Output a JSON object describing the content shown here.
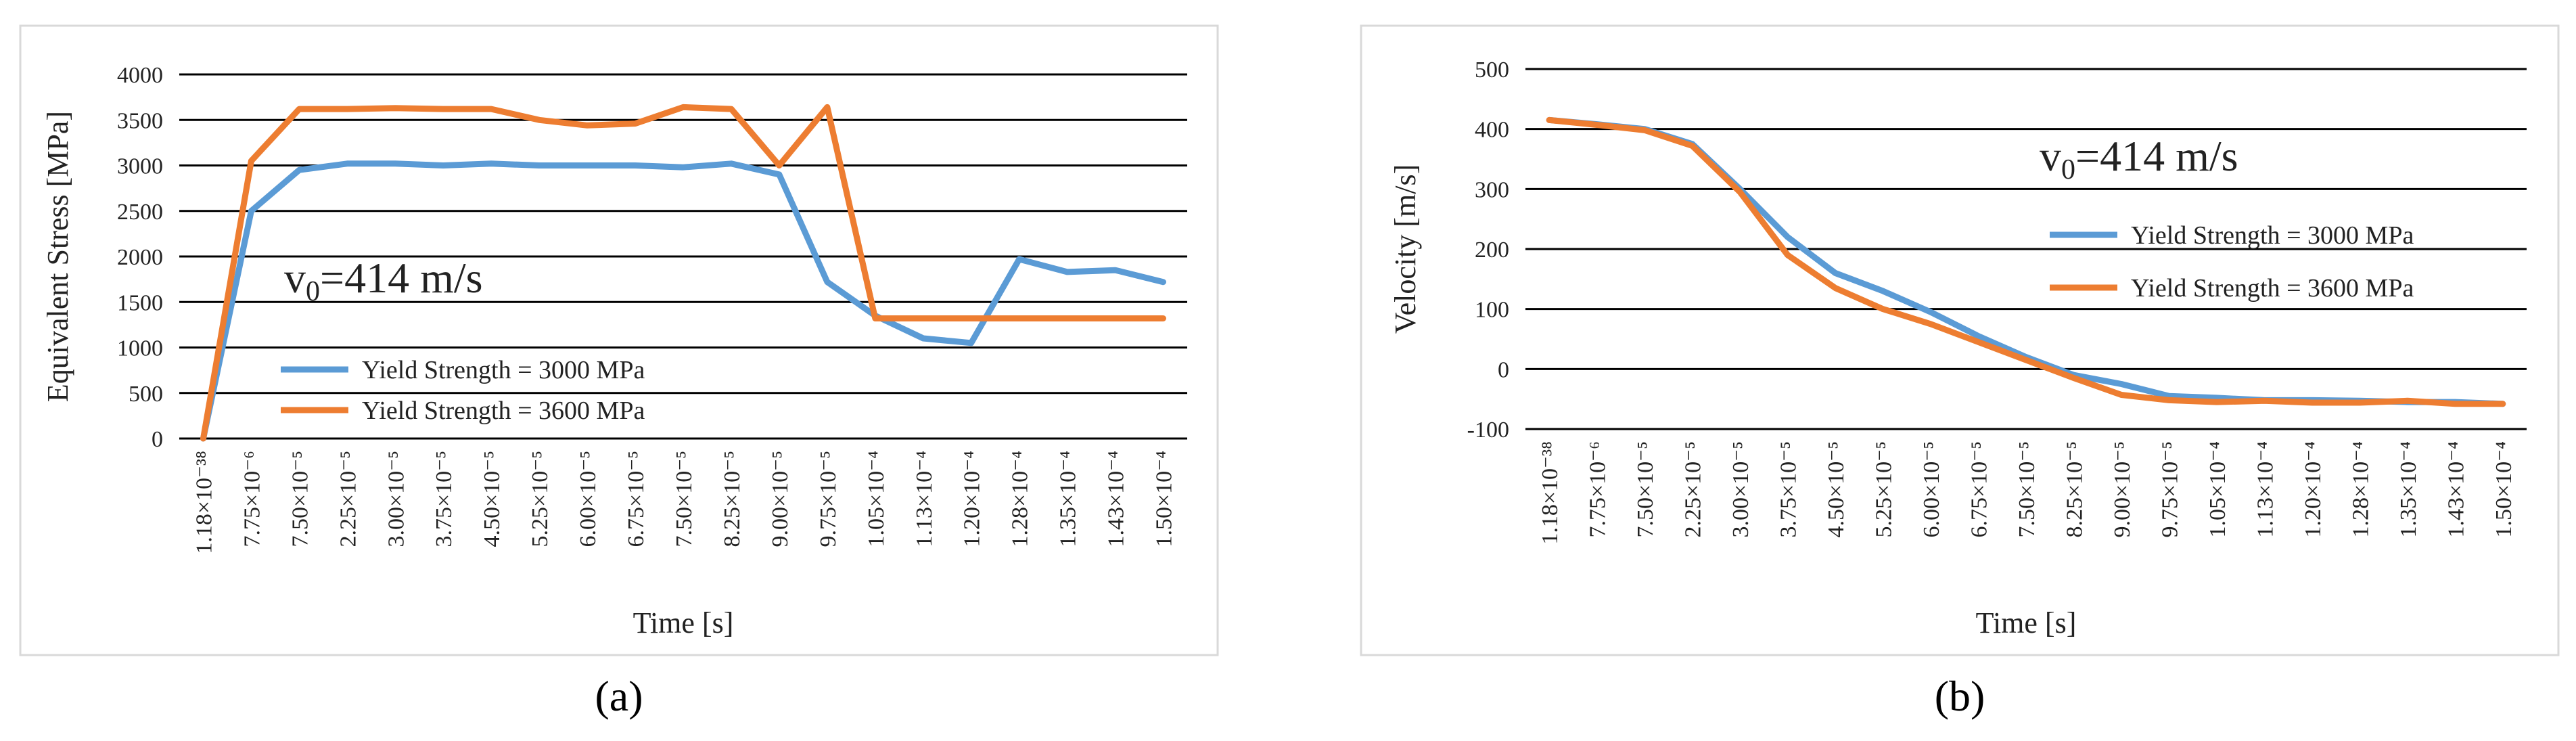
{
  "chart_data": [
    {
      "type": "line",
      "panel_label": "(a)",
      "ylabel": "Equivalent Stress [MPa]",
      "xlabel": "Time [s]",
      "ylim": [
        0,
        4000
      ],
      "yticks": [
        "0",
        "500",
        "1000",
        "1500",
        "2000",
        "2500",
        "3000",
        "3500",
        "4000"
      ],
      "x_tick_labels": [
        "1.18×10⁻³⁸",
        "7.75×10⁻⁶",
        "7.50×10⁻⁵",
        "2.25×10⁻⁵",
        "3.00×10⁻⁵",
        "3.75×10⁻⁵",
        "4.50×10⁻⁵",
        "5.25×10⁻⁵",
        "6.00×10⁻⁵",
        "6.75×10⁻⁵",
        "7.50×10⁻⁵",
        "8.25×10⁻⁵",
        "9.00×10⁻⁵",
        "9.75×10⁻⁵",
        "1.05×10⁻⁴",
        "1.13×10⁻⁴",
        "1.20×10⁻⁴",
        "1.28×10⁻⁴",
        "1.35×10⁻⁴",
        "1.43×10⁻⁴",
        "1.50×10⁻⁴"
      ],
      "grid": "horizontal",
      "annotation": {
        "base": "v",
        "sub": "0",
        "rest": "=414 m/s"
      },
      "legend_position": "bottom-left",
      "series": [
        {
          "name": "Yield Strength = 3000 MPa",
          "color": "#5b9bd5",
          "values": [
            0,
            2500,
            2950,
            3020,
            3020,
            3000,
            3020,
            3000,
            3000,
            3000,
            2980,
            3020,
            2900,
            1720,
            1350,
            1100,
            1050,
            1970,
            1830,
            1850,
            1720
          ]
        },
        {
          "name": "Yield Strength = 3600 MPa",
          "color": "#ed7d31",
          "values": [
            0,
            3050,
            3620,
            3620,
            3630,
            3620,
            3620,
            3500,
            3440,
            3460,
            3640,
            3620,
            3000,
            3640,
            1320,
            1320,
            1320,
            1320,
            1320,
            1320,
            1320
          ]
        }
      ]
    },
    {
      "type": "line",
      "panel_label": "(b)",
      "ylabel": "Velocity [m/s]",
      "xlabel": "Time [s]",
      "ylim": [
        -100,
        500
      ],
      "yticks": [
        "-100",
        "0",
        "100",
        "200",
        "300",
        "400",
        "500"
      ],
      "x_tick_labels": [
        "1.18×10⁻³⁸",
        "7.75×10⁻⁶",
        "7.50×10⁻⁵",
        "2.25×10⁻⁵",
        "3.00×10⁻⁵",
        "3.75×10⁻⁵",
        "4.50×10⁻⁵",
        "5.25×10⁻⁵",
        "6.00×10⁻⁵",
        "6.75×10⁻⁵",
        "7.50×10⁻⁵",
        "8.25×10⁻⁵",
        "9.00×10⁻⁵",
        "9.75×10⁻⁵",
        "1.05×10⁻⁴",
        "1.13×10⁻⁴",
        "1.20×10⁻⁴",
        "1.28×10⁻⁴",
        "1.35×10⁻⁴",
        "1.43×10⁻⁴",
        "1.50×10⁻⁴"
      ],
      "grid": "horizontal",
      "annotation": {
        "base": "v",
        "sub": "0",
        "rest": "=414 m/s"
      },
      "legend_position": "right",
      "series": [
        {
          "name": "Yield Strength = 3000 MPa",
          "color": "#5b9bd5",
          "values": [
            415,
            408,
            400,
            375,
            300,
            220,
            160,
            130,
            95,
            55,
            20,
            -10,
            -25,
            -45,
            -48,
            -52,
            -52,
            -53,
            -55,
            -55,
            -58
          ]
        },
        {
          "name": "Yield Strength = 3600 MPa",
          "color": "#ed7d31",
          "values": [
            415,
            407,
            398,
            372,
            295,
            190,
            135,
            100,
            75,
            45,
            15,
            -15,
            -43,
            -52,
            -55,
            -53,
            -56,
            -56,
            -53,
            -58,
            -58
          ]
        }
      ]
    }
  ]
}
